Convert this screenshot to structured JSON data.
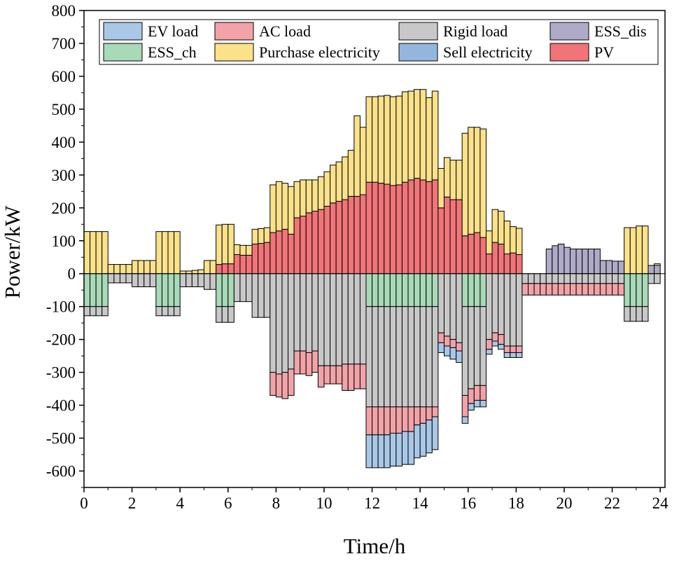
{
  "chart_data": {
    "type": "bar",
    "stacked": true,
    "xlabel": "Time/h",
    "ylabel": "Power/kW",
    "xlim": [
      0,
      24.2
    ],
    "ylim": [
      -650,
      800
    ],
    "x_ticks": [
      0,
      2,
      4,
      6,
      8,
      10,
      12,
      14,
      16,
      18,
      20,
      22,
      24
    ],
    "y_ticks": [
      -600,
      -500,
      -400,
      -300,
      -200,
      -100,
      0,
      100,
      200,
      300,
      400,
      500,
      600,
      700,
      800
    ],
    "bar_width_h": 0.25,
    "legend_position": "top",
    "colors": {
      "EV load": "#a9c8e8",
      "AC load": "#f2a3a8",
      "Rigid load": "#c8c8c8",
      "ESS_dis": "#aeaac8",
      "ESS_ch": "#a8dab8",
      "Purchase electricity": "#fbe18a",
      "Sell electricity": "#94b6dc",
      "PV": "#f07478"
    },
    "positive_order": [
      "PV",
      "ESS_dis",
      "Purchase electricity"
    ],
    "negative_order": [
      "ESS_ch",
      "Rigid load",
      "AC load",
      "EV load",
      "Sell electricity"
    ],
    "legend": [
      "EV load",
      "AC load",
      "Rigid load",
      "ESS_dis",
      "ESS_ch",
      "Purchase electricity",
      "Sell electricity",
      "PV"
    ],
    "series": [
      {
        "name": "PV",
        "values": [
          0,
          0,
          0,
          0,
          0,
          0,
          0,
          0,
          0,
          0,
          0,
          0,
          0,
          0,
          0,
          0,
          0,
          0,
          0,
          0,
          0,
          0,
          28,
          30,
          30,
          58,
          56,
          56,
          90,
          92,
          95,
          125,
          130,
          135,
          120,
          170,
          175,
          185,
          190,
          195,
          205,
          215,
          220,
          225,
          235,
          235,
          240,
          278,
          278,
          275,
          272,
          268,
          270,
          278,
          285,
          290,
          285,
          280,
          285,
          200,
          233,
          225,
          225,
          115,
          120,
          125,
          110,
          60,
          95,
          90,
          60,
          63,
          58,
          0,
          0,
          0,
          0,
          0,
          0,
          0,
          0,
          0,
          0,
          0,
          0,
          0,
          0,
          0,
          0,
          0,
          0,
          0,
          0,
          0,
          0,
          0
        ]
      },
      {
        "name": "ESS_dis",
        "values": [
          0,
          0,
          0,
          0,
          0,
          0,
          0,
          0,
          0,
          0,
          0,
          0,
          0,
          0,
          0,
          0,
          0,
          0,
          0,
          0,
          0,
          0,
          0,
          0,
          0,
          0,
          0,
          0,
          0,
          0,
          0,
          0,
          0,
          0,
          0,
          0,
          0,
          0,
          0,
          0,
          0,
          0,
          0,
          0,
          0,
          0,
          0,
          0,
          0,
          0,
          0,
          0,
          0,
          0,
          0,
          0,
          0,
          0,
          0,
          0,
          0,
          0,
          0,
          0,
          0,
          0,
          0,
          0,
          0,
          0,
          0,
          0,
          0,
          0,
          0,
          0,
          0,
          75,
          85,
          90,
          80,
          75,
          75,
          75,
          75,
          75,
          40,
          40,
          38,
          38,
          0,
          0,
          0,
          0,
          25,
          25
        ]
      },
      {
        "name": "Purchase electricity",
        "values": [
          128,
          128,
          128,
          128,
          28,
          28,
          28,
          28,
          40,
          40,
          40,
          40,
          128,
          128,
          128,
          128,
          8,
          8,
          10,
          12,
          40,
          40,
          120,
          120,
          120,
          30,
          30,
          30,
          45,
          45,
          45,
          145,
          150,
          140,
          145,
          110,
          110,
          100,
          95,
          100,
          105,
          115,
          120,
          130,
          140,
          245,
          205,
          260,
          260,
          265,
          270,
          270,
          270,
          275,
          270,
          270,
          275,
          255,
          270,
          120,
          120,
          120,
          120,
          312,
          325,
          320,
          330,
          70,
          100,
          100,
          100,
          80,
          80,
          0,
          0,
          0,
          0,
          0,
          0,
          0,
          0,
          0,
          0,
          0,
          0,
          0,
          0,
          0,
          0,
          0,
          140,
          140,
          145,
          145,
          0,
          5
        ]
      },
      {
        "name": "ESS_ch",
        "values": [
          -100,
          -100,
          -100,
          -100,
          0,
          0,
          0,
          0,
          0,
          0,
          0,
          0,
          -100,
          -100,
          -100,
          -100,
          0,
          0,
          0,
          0,
          0,
          0,
          -100,
          -100,
          -100,
          0,
          0,
          0,
          0,
          0,
          0,
          0,
          0,
          0,
          0,
          0,
          0,
          0,
          0,
          0,
          0,
          0,
          0,
          0,
          0,
          0,
          0,
          -100,
          -100,
          -100,
          -100,
          -100,
          -100,
          -100,
          -100,
          -100,
          -100,
          -100,
          -100,
          0,
          0,
          0,
          0,
          -100,
          -100,
          -100,
          -100,
          0,
          0,
          0,
          0,
          0,
          0,
          0,
          0,
          0,
          0,
          0,
          0,
          0,
          0,
          0,
          0,
          0,
          0,
          0,
          0,
          0,
          0,
          0,
          -100,
          -100,
          -100,
          -100,
          0,
          0
        ]
      },
      {
        "name": "Rigid load",
        "values": [
          -28,
          -28,
          -28,
          -28,
          -28,
          -28,
          -28,
          -28,
          -40,
          -40,
          -40,
          -40,
          -28,
          -28,
          -28,
          -28,
          -40,
          -40,
          -40,
          -40,
          -48,
          -48,
          -48,
          -48,
          -48,
          -85,
          -85,
          -85,
          -133,
          -133,
          -133,
          -300,
          -305,
          -300,
          -290,
          -235,
          -235,
          -240,
          -235,
          -280,
          -280,
          -280,
          -280,
          -275,
          -275,
          -275,
          -275,
          -305,
          -305,
          -305,
          -305,
          -305,
          -305,
          -305,
          -305,
          -305,
          -305,
          -305,
          -305,
          -180,
          -190,
          -200,
          -210,
          -270,
          -250,
          -240,
          -240,
          -200,
          -180,
          -185,
          -220,
          -220,
          -220,
          -30,
          -30,
          -30,
          -30,
          -30,
          -30,
          -30,
          -30,
          -30,
          -30,
          -30,
          -30,
          -30,
          -30,
          -30,
          -30,
          -30,
          -45,
          -45,
          -45,
          -45,
          -30,
          -30
        ]
      },
      {
        "name": "AC load",
        "values": [
          0,
          0,
          0,
          0,
          0,
          0,
          0,
          0,
          0,
          0,
          0,
          0,
          0,
          0,
          0,
          0,
          0,
          0,
          0,
          0,
          0,
          0,
          0,
          0,
          0,
          0,
          0,
          0,
          0,
          0,
          0,
          -70,
          -70,
          -80,
          -80,
          -70,
          -70,
          -70,
          -65,
          -65,
          -55,
          -55,
          -55,
          -80,
          -80,
          -75,
          -75,
          -85,
          -85,
          -85,
          -85,
          -80,
          -80,
          -75,
          -75,
          -55,
          -50,
          -40,
          -30,
          -30,
          -30,
          -25,
          -25,
          -65,
          -45,
          -45,
          -45,
          -30,
          -25,
          -30,
          -20,
          -20,
          -20,
          -35,
          -35,
          -35,
          -35,
          -35,
          -35,
          -35,
          -35,
          -35,
          -35,
          -35,
          -35,
          -35,
          -35,
          -35,
          -35,
          -35,
          0,
          0,
          0,
          0,
          0,
          0
        ]
      },
      {
        "name": "EV load",
        "values": [
          0,
          0,
          0,
          0,
          0,
          0,
          0,
          0,
          0,
          0,
          0,
          0,
          0,
          0,
          0,
          0,
          0,
          0,
          0,
          0,
          0,
          0,
          0,
          0,
          0,
          0,
          0,
          0,
          0,
          0,
          0,
          0,
          0,
          0,
          0,
          0,
          0,
          0,
          0,
          0,
          0,
          0,
          0,
          0,
          0,
          0,
          0,
          -100,
          -100,
          -100,
          -100,
          -100,
          -100,
          -100,
          -100,
          -100,
          -100,
          -100,
          -100,
          -30,
          -30,
          -35,
          -35,
          -20,
          -20,
          -20,
          -20,
          -15,
          -15,
          -15,
          -15,
          -15,
          -15,
          0,
          0,
          0,
          0,
          0,
          0,
          0,
          0,
          0,
          0,
          0,
          0,
          0,
          0,
          0,
          0,
          0,
          0,
          0,
          0,
          0,
          0,
          0
        ]
      },
      {
        "name": "Sell electricity",
        "values": [
          0,
          0,
          0,
          0,
          0,
          0,
          0,
          0,
          0,
          0,
          0,
          0,
          0,
          0,
          0,
          0,
          0,
          0,
          0,
          0,
          0,
          0,
          0,
          0,
          0,
          0,
          0,
          0,
          0,
          0,
          0,
          0,
          0,
          0,
          0,
          0,
          0,
          0,
          0,
          0,
          0,
          0,
          0,
          0,
          0,
          0,
          0,
          0,
          0,
          0,
          0,
          0,
          0,
          0,
          0,
          0,
          0,
          0,
          0,
          0,
          0,
          0,
          0,
          0,
          0,
          0,
          0,
          0,
          0,
          0,
          0,
          0,
          0,
          0,
          0,
          0,
          0,
          0,
          0,
          0,
          0,
          0,
          0,
          0,
          0,
          0,
          0,
          0,
          0,
          0,
          0,
          0,
          0,
          0,
          0,
          0
        ]
      }
    ]
  }
}
